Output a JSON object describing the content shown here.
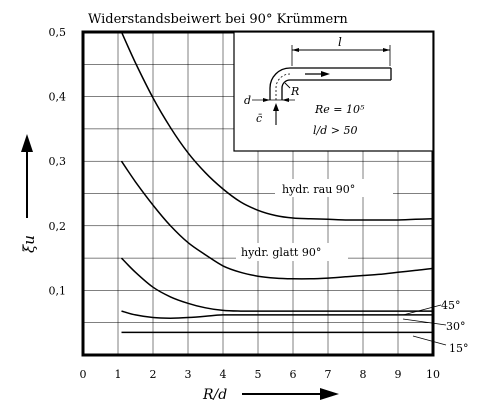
{
  "chart_data": {
    "type": "line",
    "title": "Widerstandsbeiwert bei 90° Krümmern",
    "xlabel": "R/d",
    "ylabel": "ξu",
    "xlim": [
      0,
      10
    ],
    "ylim": [
      0,
      0.5
    ],
    "x_ticks": [
      "0",
      "1",
      "2",
      "3",
      "4",
      "5",
      "6",
      "7",
      "8",
      "9",
      "10"
    ],
    "y_ticks": [
      "0,1",
      "0,2",
      "0,3",
      "0,4",
      "0,5"
    ],
    "grid": true,
    "series": [
      {
        "name": "hydr. rau 90°",
        "x": [
          1.1,
          1.5,
          2,
          2.5,
          3,
          3.5,
          4,
          4.5,
          5,
          5.5,
          6,
          6.5,
          7,
          7.5,
          8,
          8.5,
          9,
          9.5,
          10
        ],
        "y": [
          0.5,
          0.452,
          0.398,
          0.352,
          0.313,
          0.282,
          0.257,
          0.237,
          0.224,
          0.216,
          0.212,
          0.211,
          0.21,
          0.209,
          0.209,
          0.209,
          0.209,
          0.21,
          0.211
        ]
      },
      {
        "name": "hydr. glatt 90°",
        "x": [
          1.1,
          1.5,
          2,
          2.5,
          3,
          3.5,
          4,
          4.5,
          5,
          5.5,
          6,
          6.5,
          7,
          7.5,
          8,
          8.5,
          9,
          9.5,
          10
        ],
        "y": [
          0.3,
          0.268,
          0.232,
          0.2,
          0.174,
          0.155,
          0.138,
          0.128,
          0.122,
          0.119,
          0.118,
          0.118,
          0.119,
          0.121,
          0.123,
          0.125,
          0.128,
          0.131,
          0.134
        ]
      },
      {
        "name": "45°",
        "x": [
          1.1,
          1.5,
          2,
          2.5,
          3,
          3.5,
          4,
          4.5,
          5,
          6,
          7,
          8,
          9,
          10
        ],
        "y": [
          0.15,
          0.128,
          0.105,
          0.09,
          0.08,
          0.073,
          0.069,
          0.068,
          0.068,
          0.068,
          0.068,
          0.068,
          0.068,
          0.068
        ]
      },
      {
        "name": "30°",
        "x": [
          1.1,
          1.5,
          2,
          2.5,
          3,
          3.5,
          4,
          5,
          6,
          7,
          8,
          9,
          10
        ],
        "y": [
          0.068,
          0.062,
          0.058,
          0.057,
          0.058,
          0.06,
          0.062,
          0.062,
          0.062,
          0.062,
          0.062,
          0.062,
          0.062
        ]
      },
      {
        "name": "15°",
        "x": [
          1.1,
          10
        ],
        "y": [
          0.035,
          0.035
        ]
      }
    ],
    "series_labels": [
      "hydr. rau 90°",
      "hydr. glatt 90°",
      "45°",
      "30°",
      "15°"
    ]
  },
  "inset": {
    "l_label": "l",
    "d_label": "d",
    "c_label": "c̄",
    "r_label": "R",
    "re_label": "Re = 10⁵",
    "ld_label": "l/d > 50"
  }
}
